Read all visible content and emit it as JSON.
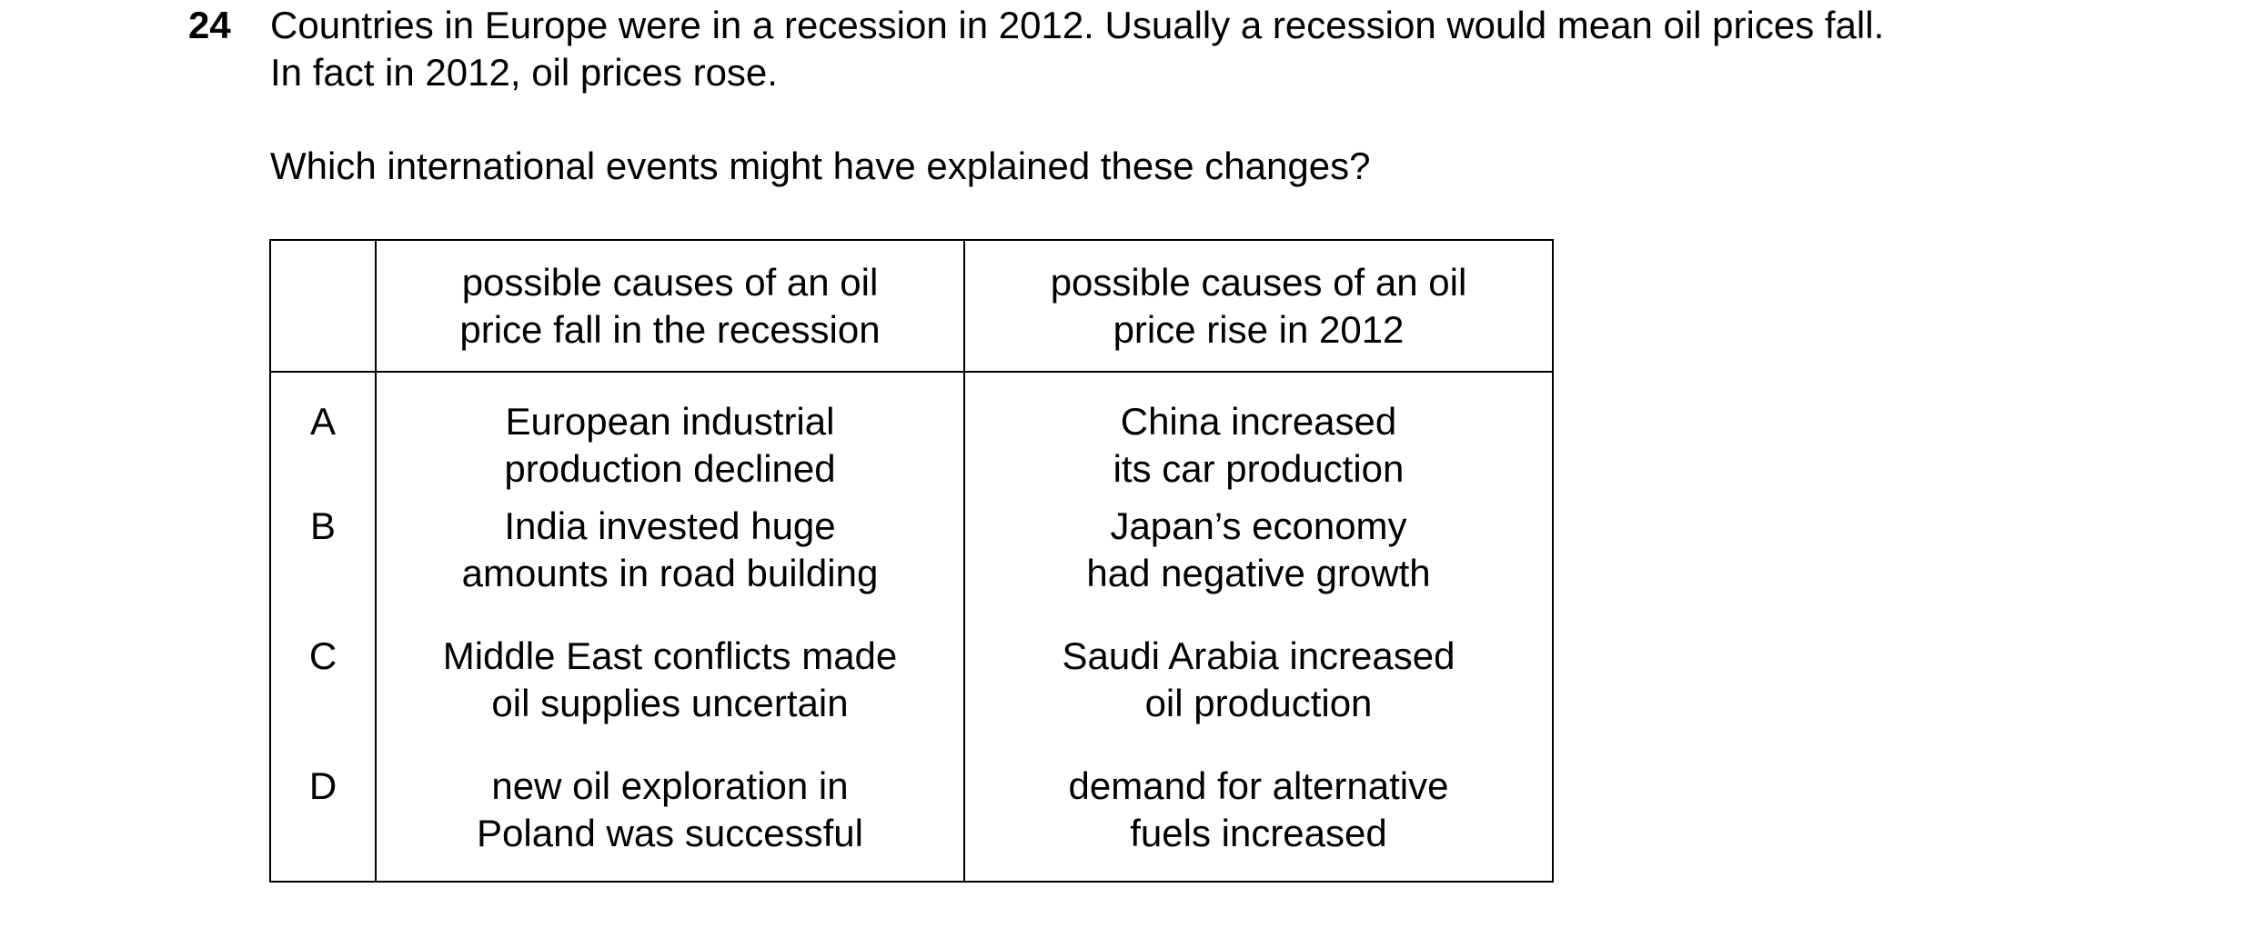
{
  "question": {
    "number": "24",
    "stem_line1": "Countries in Europe were in a recession in 2012. Usually a recession would mean oil prices fall.",
    "stem_line2": "In fact in 2012, oil prices rose.",
    "prompt": "Which international events might have explained these changes?"
  },
  "table": {
    "headers": {
      "fall_line1": "possible causes of an oil",
      "fall_line2": "price fall in the recession",
      "rise_line1": "possible causes of an oil",
      "rise_line2": "price rise in 2012"
    },
    "rows": [
      {
        "letter": "A",
        "fall_line1": "European industrial",
        "fall_line2": "production declined",
        "rise_line1": "China increased",
        "rise_line2": "its car production"
      },
      {
        "letter": "B",
        "fall_line1": "India invested huge",
        "fall_line2": "amounts in road building",
        "rise_line1": "Japan’s economy",
        "rise_line2": "had negative growth"
      },
      {
        "letter": "C",
        "fall_line1": "Middle East conflicts made",
        "fall_line2": "oil supplies uncertain",
        "rise_line1": "Saudi Arabia increased",
        "rise_line2": "oil production"
      },
      {
        "letter": "D",
        "fall_line1": "new oil exploration in",
        "fall_line2": "Poland was successful",
        "rise_line1": "demand for alternative",
        "rise_line2": "fuels increased"
      }
    ]
  }
}
